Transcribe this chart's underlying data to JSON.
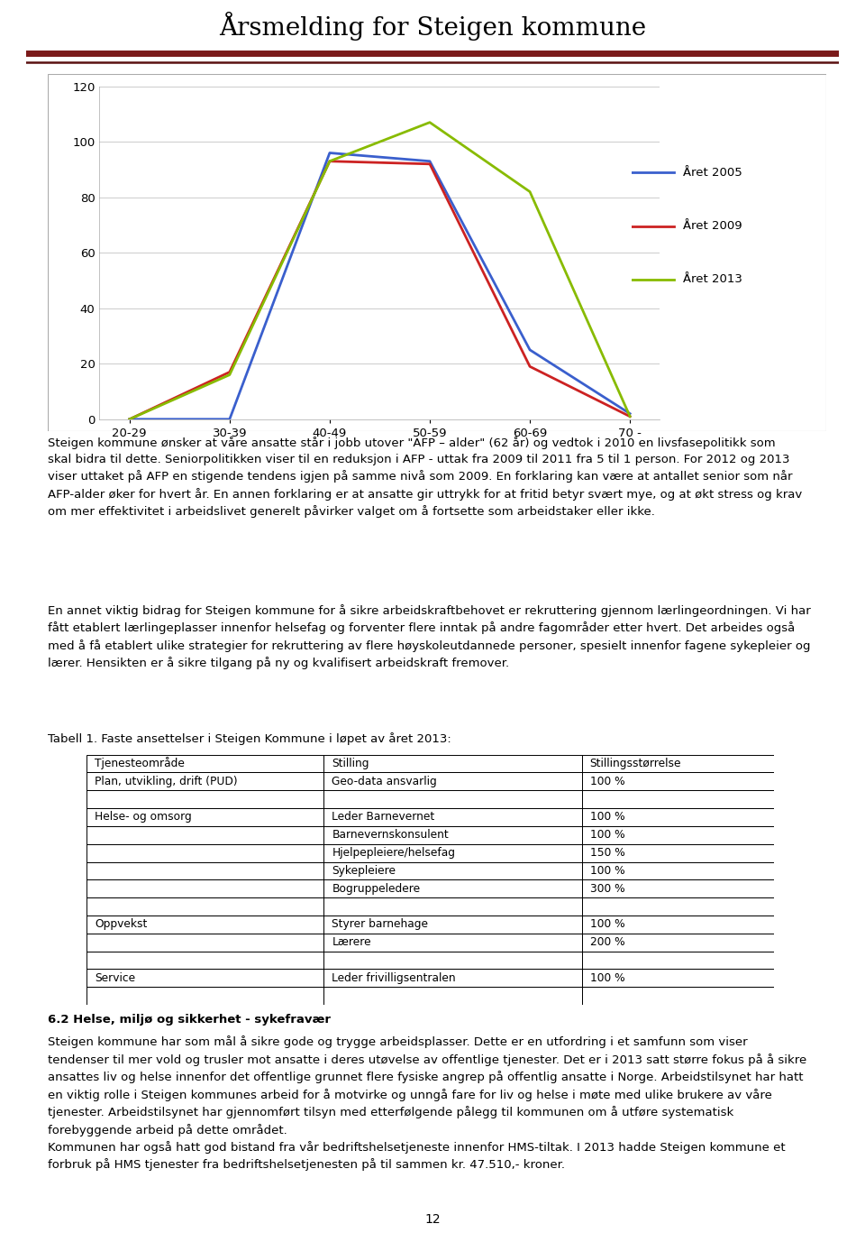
{
  "page_title": "Årsmelding for Steigen kommune",
  "title_fontsize": 20,
  "page_number": "12",
  "header_line_color1": "#7B1A1A",
  "header_line_color2": "#5A1010",
  "chart": {
    "x_labels": [
      "20-29",
      "30-39",
      "40-49",
      "50-59",
      "60-69",
      "70 -"
    ],
    "ylim": [
      0,
      120
    ],
    "yticks": [
      0,
      20,
      40,
      60,
      80,
      100,
      120
    ],
    "series": [
      {
        "label": "Året 2005",
        "color": "#3A5FCD",
        "values": [
          0,
          0,
          96,
          93,
          25,
          2
        ]
      },
      {
        "label": "Året 2009",
        "color": "#CC2222",
        "values": [
          0,
          17,
          93,
          92,
          19,
          1
        ]
      },
      {
        "label": "Året 2013",
        "color": "#88BB00",
        "values": [
          0,
          16,
          93,
          107,
          82,
          1
        ]
      }
    ]
  },
  "paragraph1": "Steigen kommune ønsker at våre ansatte står i jobb utover \"AFP – alder\" (62 år) og vedtok i 2010 en livsfasepolitikk som\nskal bidra til dette. Seniorpolitikken viser til en reduksjon i AFP - uttak fra 2009 til 2011 fra 5 til 1 person. For 2012 og 2013\nviser uttaket på AFP en stigende tendens igjen på samme nivå som 2009. En forklaring kan være at antallet senior som når\nAFP-alder øker for hvert år. En annen forklaring er at ansatte gir uttrykk for at fritid betyr svært mye, og at økt stress og krav\nom mer effektivitet i arbeidslivet generelt påvirker valget om å fortsette som arbeidstaker eller ikke.",
  "paragraph2": "En annet viktig bidrag for Steigen kommune for å sikre arbeidskraftbehovet er rekruttering gjennom lærlingeordningen. Vi har\nfått etablert lærlingeplasser innenfor helsefag og forventer flere inntak på andre fagområder etter hvert. Det arbeides også\nmed å få etablert ulike strategier for rekruttering av flere høyskoleutdannede personer, spesielt innenfor fagene sykepleier og\nlærer. Hensikten er å sikre tilgang på ny og kvalifisert arbeidskraft fremover.",
  "table_caption": "Tabell 1. Faste ansettelser i Steigen Kommune i løpet av året 2013:",
  "table_headers": [
    "Tjenesteområde",
    "Stilling",
    "Stillingsstørrelse"
  ],
  "table_rows": [
    [
      "Plan, utvikling, drift (PUD)",
      "Geo-data ansvarlig",
      "100 %"
    ],
    [
      "",
      "",
      ""
    ],
    [
      "Helse- og omsorg",
      "Leder Barnevernet",
      "100 %"
    ],
    [
      "",
      "Barnevernskonsulent",
      "100 %"
    ],
    [
      "",
      "Hjelpepleiere/helsefag",
      "150 %"
    ],
    [
      "",
      "Sykepleiere",
      "100 %"
    ],
    [
      "",
      "Bogruppeledere",
      "300 %"
    ],
    [
      "",
      "",
      ""
    ],
    [
      "Oppvekst",
      "Styrer barnehage",
      "100 %"
    ],
    [
      "",
      "Lærere",
      "200 %"
    ],
    [
      "",
      "",
      ""
    ],
    [
      "Service",
      "Leder frivilligsentralen",
      "100 %"
    ],
    [
      "",
      "",
      ""
    ]
  ],
  "section_heading": "6.2 Helse, miljø og sikkerhet - sykefravær",
  "paragraph3": "Steigen kommune har som mål å sikre gode og trygge arbeidsplasser. Dette er en utfordring i et samfunn som viser\ntendenser til mer vold og trusler mot ansatte i deres utøvelse av offentlige tjenester. Det er i 2013 satt større fokus på å sikre\nansattes liv og helse innenfor det offentlige grunnet flere fysiske angrep på offentlig ansatte i Norge. Arbeidstilsynet har hatt\nen viktig rolle i Steigen kommunes arbeid for å motvirke og unngå fare for liv og helse i møte med ulike brukere av våre\ntjenester. Arbeidstilsynet har gjennomført tilsyn med etterfølgende pålegg til kommunen om å utføre systematisk\nforebyggende arbeid på dette området.\nKommunen har også hatt god bistand fra vår bedriftshelsetjeneste innenfor HMS-tiltak. I 2013 hadde Steigen kommune et\nforbruk på HMS tjenester fra bedriftshelsetjenesten på til sammen kr. 47.510,- kroner."
}
